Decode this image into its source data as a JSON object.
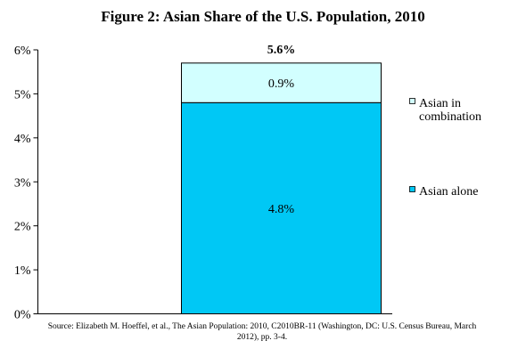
{
  "chart_data": {
    "type": "bar",
    "title": "Figure 2: Asian Share of the U.S. Population, 2010",
    "categories": [
      ""
    ],
    "series": [
      {
        "name": "Asian alone",
        "values": [
          4.8
        ],
        "label": "4.8%",
        "color": "#00C8F5"
      },
      {
        "name": "Asian in combination",
        "values": [
          0.9
        ],
        "label": "0.9%",
        "color": "#D2FFFF"
      }
    ],
    "stacked": true,
    "total": {
      "value": 5.6,
      "label": "5.6%"
    },
    "ylim": [
      0,
      6
    ],
    "y_ticks": [
      "0%",
      "1%",
      "2%",
      "3%",
      "4%",
      "5%",
      "6%"
    ],
    "xlabel": "",
    "ylabel": "",
    "grid": false,
    "legend": {
      "placement": "right",
      "entries": [
        {
          "line1": "Asian in",
          "line2": "combination",
          "color": "#D2FFFF"
        },
        {
          "line1": "Asian alone",
          "line2": "",
          "color": "#00C8F5"
        }
      ]
    }
  },
  "source_text": "Source: Elizabeth M. Hoeffel, et al., The Asian Population: 2010, C2010BR-11 (Washington, DC: U.S. Census Bureau, March 2012), pp. 3-4."
}
